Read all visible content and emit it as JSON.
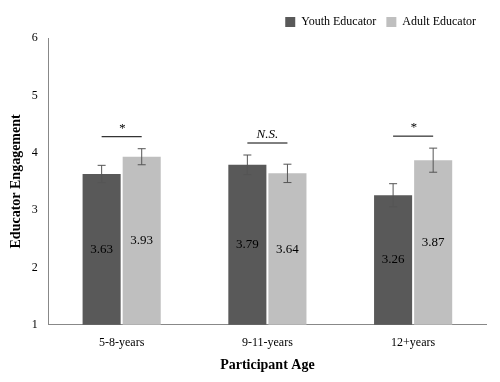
{
  "chart_data": {
    "type": "bar",
    "x_label": "Participant Age",
    "y_label": "Educator Engagement",
    "categories": [
      "5-8-years",
      "9-11-years",
      "12+years"
    ],
    "series": [
      {
        "name": "Youth Educator",
        "color": "#595959",
        "values": [
          3.63,
          3.79,
          3.26
        ],
        "error_bars": [
          0.15,
          0.17,
          0.2
        ]
      },
      {
        "name": "Adult Educator",
        "color": "#bfbfbf",
        "values": [
          3.93,
          3.64,
          3.87
        ],
        "error_bars": [
          0.14,
          0.16,
          0.21
        ]
      }
    ],
    "ylim": [
      1,
      6
    ],
    "yticks": [
      1,
      2,
      3,
      4,
      5,
      6
    ],
    "grid": false,
    "legend": "top-right",
    "data_labels": true,
    "annotations": [
      {
        "category": "5-8-years",
        "text": "*"
      },
      {
        "category": "9-11-years",
        "text": "N.S."
      },
      {
        "category": "12+years",
        "text": "*"
      }
    ]
  }
}
